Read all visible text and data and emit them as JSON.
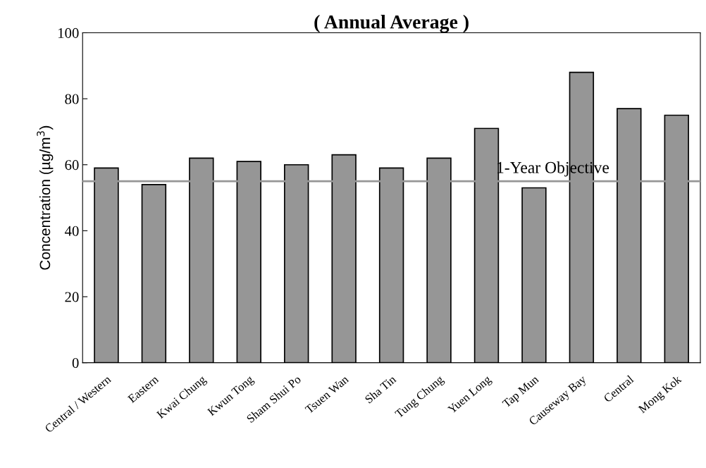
{
  "chart_data": {
    "type": "bar",
    "title": "( Annual Average )",
    "ylabel": "Concentration (µg/m$^{3}$)",
    "categories": [
      "Central / Western",
      "Eastern",
      "Kwai Chung",
      "Kwun Tong",
      "Sham Shui Po",
      "Tsuen Wan",
      "Sha Tin",
      "Tung Chung",
      "Yuen Long",
      "Tap Mun",
      "Causeway Bay",
      "Central",
      "Mong Kok"
    ],
    "values": [
      59,
      54,
      62,
      61,
      60,
      63,
      59,
      62,
      71,
      53,
      88,
      77,
      75
    ],
    "color": "#969696",
    "ylim": [
      0,
      100
    ],
    "yticks": [
      0,
      20,
      40,
      60,
      80,
      100
    ],
    "ref_lines": [
      {
        "axis": "y",
        "value": 55,
        "label": "1-Year Objective",
        "color": "#969696"
      }
    ],
    "grid": false,
    "legend": false
  }
}
